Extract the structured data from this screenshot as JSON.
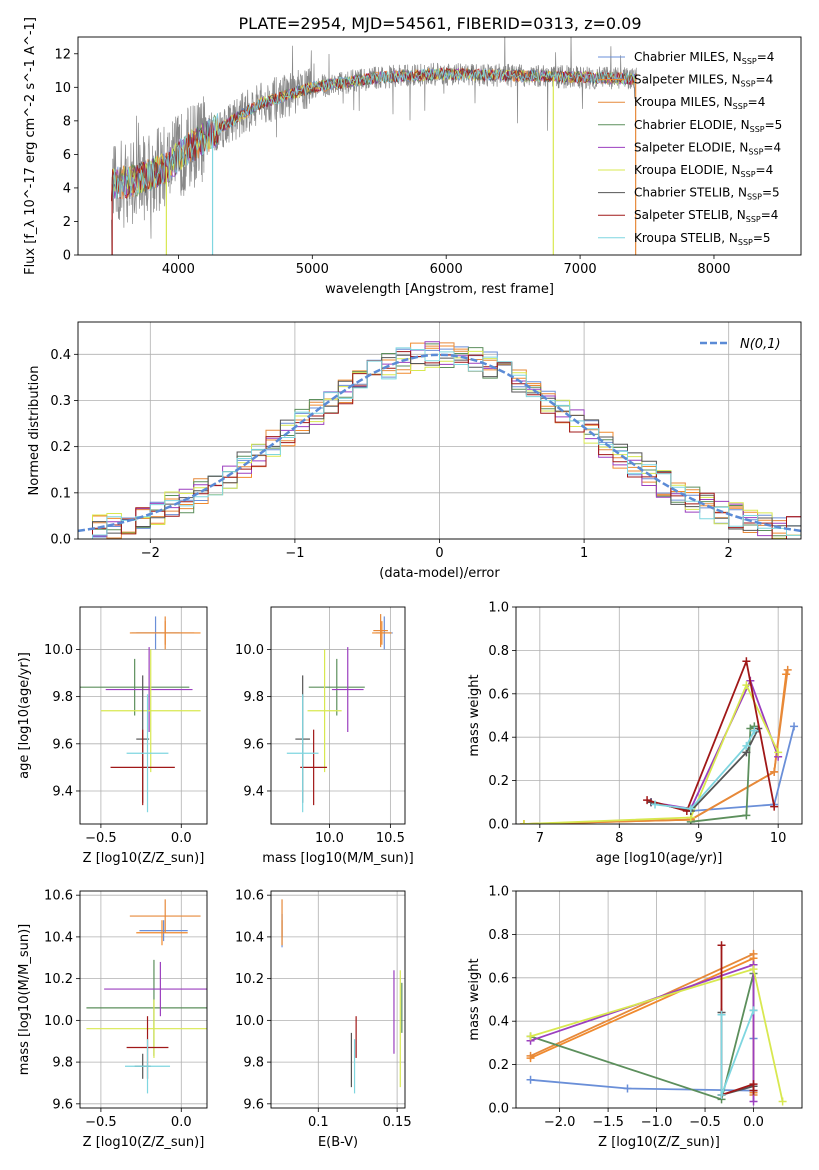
{
  "figure_title": "PLATE=2954, MJD=54561, FIBERID=0313, z=0.09",
  "model_colors": [
    "#6a8fd8",
    "#f08a2e",
    "#e6893a",
    "#5c8f5c",
    "#9b3fbf",
    "#d8e850",
    "#555555",
    "#a01818",
    "#7fd6e0"
  ],
  "legend_entries": [
    "Chabrier MILES, N_SSP=4",
    "Salpeter MILES, N_SSP=4",
    "Kroupa MILES, N_SSP=4",
    "Chabrier ELODIE, N_SSP=5",
    "Salpeter ELODIE, N_SSP=4",
    "Kroupa ELODIE, N_SSP=4",
    "Chabrier STELIB, N_SSP=5",
    "Salpeter STELIB, N_SSP=4",
    "Kroupa STELIB, N_SSP=5"
  ],
  "chart_data": [
    {
      "id": "spectrum",
      "type": "line",
      "xlabel": "wavelength [Angstrom, rest frame]",
      "ylabel": "Flux [f_λ 10^-17 erg cm^-2 s^-1 A^-1]",
      "xlim": [
        3250,
        8650
      ],
      "ylim": [
        0,
        13
      ],
      "xticks": [
        4000,
        5000,
        6000,
        7000,
        8000
      ],
      "yticks": [
        0,
        2,
        4,
        6,
        8,
        10,
        12
      ],
      "grid": false,
      "legend_position": "right",
      "continuum_nodes": {
        "x": [
          3500,
          3700,
          3900,
          4100,
          4300,
          4600,
          5000,
          5500,
          6000,
          6500,
          7000,
          7400
        ],
        "y": [
          4.2,
          4.5,
          5.2,
          6.5,
          7.5,
          9.0,
          10.0,
          10.6,
          10.8,
          10.7,
          10.6,
          10.5
        ]
      },
      "data_range": [
        3500,
        7420
      ]
    },
    {
      "id": "residual_histogram",
      "type": "bar",
      "xlabel": "(data-model)/error",
      "ylabel": "Normed distribution",
      "xlim": [
        -2.5,
        2.5
      ],
      "ylim": [
        0,
        0.47
      ],
      "xticks": [
        -2,
        -1,
        0,
        1,
        2
      ],
      "yticks": [
        0.0,
        0.1,
        0.2,
        0.3,
        0.4
      ],
      "grid": true,
      "legend_position": "top-right",
      "reference_curve": "N(0,1)",
      "bin_width": 0.1
    },
    {
      "id": "age_vs_Z",
      "type": "scatter",
      "xlabel": "Z [log10(Z/Z_sun)]",
      "ylabel": "age [log10(age/yr)]",
      "xlim": [
        -0.63,
        0.16
      ],
      "ylim": [
        9.26,
        10.18
      ],
      "xticks": [
        -0.5,
        0.0
      ],
      "yticks": [
        9.4,
        9.6,
        9.8,
        10.0
      ],
      "grid": true,
      "points": [
        {
          "x": -0.16,
          "xerr": 0.15,
          "y": 10.07,
          "yerr": 0.07
        },
        {
          "x": -0.1,
          "xerr": 0.22,
          "y": 10.07,
          "yerr": 0.05
        },
        {
          "x": -0.1,
          "xerr": 0.18,
          "y": 10.07,
          "yerr": 0.07
        },
        {
          "x": -0.29,
          "xerr": 0.34,
          "y": 9.84,
          "yerr": 0.12
        },
        {
          "x": -0.2,
          "xerr": 0.27,
          "y": 9.83,
          "yerr": 0.18
        },
        {
          "x": -0.19,
          "xerr": 0.31,
          "y": 9.74,
          "yerr": 0.26
        },
        {
          "x": -0.24,
          "xerr": 0.04,
          "y": 9.62,
          "yerr": 0.27
        },
        {
          "x": -0.24,
          "xerr": 0.2,
          "y": 9.5,
          "yerr": 0.16
        },
        {
          "x": -0.21,
          "xerr": 0.13,
          "y": 9.56,
          "yerr": 0.25
        }
      ]
    },
    {
      "id": "age_vs_mass",
      "type": "scatter",
      "xlabel": "mass [log10(M/M_sun)]",
      "ylabel": "",
      "xlim": [
        9.52,
        10.62
      ],
      "ylim": [
        9.26,
        10.18
      ],
      "xticks": [
        10.0,
        10.5
      ],
      "yticks": [
        9.4,
        9.6,
        9.8,
        10.0
      ],
      "grid": true,
      "points": [
        {
          "x": 10.45,
          "xerr": 0.07,
          "y": 10.07,
          "yerr": 0.07
        },
        {
          "x": 10.43,
          "xerr": 0.08,
          "y": 10.07,
          "yerr": 0.05
        },
        {
          "x": 10.42,
          "xerr": 0.06,
          "y": 10.08,
          "yerr": 0.07
        },
        {
          "x": 10.06,
          "xerr": 0.23,
          "y": 9.84,
          "yerr": 0.12
        },
        {
          "x": 10.15,
          "xerr": 0.13,
          "y": 9.83,
          "yerr": 0.18
        },
        {
          "x": 9.96,
          "xerr": 0.14,
          "y": 9.74,
          "yerr": 0.26
        },
        {
          "x": 9.78,
          "xerr": 0.06,
          "y": 9.62,
          "yerr": 0.27
        },
        {
          "x": 9.87,
          "xerr": 0.11,
          "y": 9.5,
          "yerr": 0.16
        },
        {
          "x": 9.78,
          "xerr": 0.13,
          "y": 9.56,
          "yerr": 0.25
        }
      ]
    },
    {
      "id": "mass_weight_vs_age",
      "type": "line",
      "xlabel": "age [log10(age/yr)]",
      "ylabel": "mass weight",
      "xlim": [
        6.7,
        10.3
      ],
      "ylim": [
        0,
        1.0
      ],
      "xticks": [
        7,
        8,
        9,
        10
      ],
      "yticks": [
        0.0,
        0.2,
        0.4,
        0.6,
        0.8,
        1.0
      ],
      "grid": true,
      "series": [
        {
          "x": [
            8.4,
            8.9,
            9.95,
            10.2
          ],
          "y": [
            0.1,
            0.06,
            0.09,
            0.45
          ]
        },
        {
          "x": [
            6.8,
            8.9,
            9.95,
            10.1
          ],
          "y": [
            0.0,
            0.02,
            0.24,
            0.69
          ]
        },
        {
          "x": [
            6.8,
            8.9,
            9.95,
            10.12
          ],
          "y": [
            0.0,
            0.02,
            0.24,
            0.71
          ]
        },
        {
          "x": [
            8.9,
            9.6,
            9.65,
            9.7
          ],
          "y": [
            0.01,
            0.04,
            0.44,
            0.45
          ]
        },
        {
          "x": [
            8.4,
            8.9,
            9.65,
            10.0
          ],
          "y": [
            0.1,
            0.07,
            0.66,
            0.31
          ]
        },
        {
          "x": [
            6.8,
            8.9,
            9.6,
            10.0
          ],
          "y": [
            0.0,
            0.03,
            0.64,
            0.33
          ]
        },
        {
          "x": [
            8.4,
            8.9,
            9.6,
            9.75
          ],
          "y": [
            0.1,
            0.06,
            0.33,
            0.44
          ]
        },
        {
          "x": [
            8.35,
            8.85,
            9.6,
            9.95
          ],
          "y": [
            0.11,
            0.06,
            0.75,
            0.08
          ]
        },
        {
          "x": [
            8.45,
            8.9,
            9.6,
            9.7
          ],
          "y": [
            0.09,
            0.07,
            0.36,
            0.43
          ]
        }
      ]
    },
    {
      "id": "mass_vs_Z",
      "type": "scatter",
      "xlabel": "Z [log10(Z/Z_sun)]",
      "ylabel": "mass [log10(M/M_sun)]",
      "xlim": [
        -0.63,
        0.16
      ],
      "ylim": [
        9.58,
        10.62
      ],
      "xticks": [
        -0.5,
        0.0
      ],
      "yticks": [
        9.6,
        9.8,
        10.0,
        10.2,
        10.4,
        10.6
      ],
      "grid": true,
      "points": [
        {
          "x": -0.11,
          "xerr": 0.15,
          "y": 10.43,
          "yerr": 0.05
        },
        {
          "x": -0.12,
          "xerr": 0.16,
          "y": 10.42,
          "yerr": 0.06
        },
        {
          "x": -0.1,
          "xerr": 0.22,
          "y": 10.5,
          "yerr": 0.08
        },
        {
          "x": -0.17,
          "xerr": 0.42,
          "y": 10.06,
          "yerr": 0.23
        },
        {
          "x": -0.13,
          "xerr": 0.35,
          "y": 10.15,
          "yerr": 0.13
        },
        {
          "x": -0.17,
          "xerr": 0.42,
          "y": 9.96,
          "yerr": 0.14
        },
        {
          "x": -0.24,
          "xerr": 0.05,
          "y": 9.78,
          "yerr": 0.06
        },
        {
          "x": -0.21,
          "xerr": 0.13,
          "y": 9.87,
          "yerr": 0.15
        },
        {
          "x": -0.21,
          "xerr": 0.14,
          "y": 9.78,
          "yerr": 0.13
        }
      ]
    },
    {
      "id": "mass_vs_EBV",
      "type": "scatter",
      "xlabel": "E(B-V)",
      "ylabel": "",
      "xlim": [
        0.07,
        0.155
      ],
      "ylim": [
        9.58,
        10.62
      ],
      "xticks": [
        0.1,
        0.15
      ],
      "yticks": [
        9.6,
        9.8,
        10.0,
        10.2,
        10.4,
        10.6
      ],
      "grid": true,
      "points": [
        {
          "x": 0.077,
          "y": 10.43,
          "yerr": 0.08
        },
        {
          "x": 0.077,
          "y": 10.42,
          "yerr": 0.06
        },
        {
          "x": 0.077,
          "y": 10.49,
          "yerr": 0.09
        },
        {
          "x": 0.153,
          "y": 10.06,
          "yerr": 0.12
        },
        {
          "x": 0.148,
          "y": 10.04,
          "yerr": 0.2
        },
        {
          "x": 0.152,
          "y": 9.96,
          "yerr": 0.28
        },
        {
          "x": 0.121,
          "y": 9.81,
          "yerr": 0.13
        },
        {
          "x": 0.124,
          "y": 9.92,
          "yerr": 0.1
        },
        {
          "x": 0.123,
          "y": 9.78,
          "yerr": 0.13
        }
      ]
    },
    {
      "id": "mass_weight_vs_Z",
      "type": "line",
      "xlabel": "Z [log10(Z/Z_sun)]",
      "ylabel": "mass weight",
      "xlim": [
        -2.45,
        0.5
      ],
      "ylim": [
        0,
        1.0
      ],
      "xticks": [
        -2.0,
        -1.5,
        -1.0,
        -0.5,
        0.0
      ],
      "yticks": [
        0.0,
        0.2,
        0.4,
        0.6,
        0.8,
        1.0
      ],
      "grid": true,
      "series": [
        {
          "x": [
            -2.3,
            -1.3,
            0.0,
            0.0
          ],
          "y": [
            0.13,
            0.09,
            0.08,
            0.32
          ]
        },
        {
          "x": [
            -2.3,
            0.0,
            0.0
          ],
          "y": [
            0.23,
            0.69,
            0.07
          ]
        },
        {
          "x": [
            -2.3,
            0.0,
            0.0
          ],
          "y": [
            0.24,
            0.71,
            0.06
          ]
        },
        {
          "x": [
            -2.3,
            -0.33,
            0.0,
            0.0
          ],
          "y": [
            0.33,
            0.04,
            0.62,
            0.45
          ]
        },
        {
          "x": [
            -2.3,
            0.0,
            0.0
          ],
          "y": [
            0.31,
            0.66,
            0.03
          ]
        },
        {
          "x": [
            -2.3,
            0.0,
            0.3
          ],
          "y": [
            0.33,
            0.64,
            0.03
          ]
        },
        {
          "x": [
            -0.33,
            -0.33,
            0.0,
            0.0
          ],
          "y": [
            0.44,
            0.06,
            0.1,
            0.08
          ]
        },
        {
          "x": [
            -0.33,
            -0.33,
            0.0,
            0.0
          ],
          "y": [
            0.75,
            0.06,
            0.11,
            0.08
          ]
        },
        {
          "x": [
            -0.33,
            -0.33,
            0.0
          ],
          "y": [
            0.43,
            0.06,
            0.45
          ]
        }
      ]
    }
  ]
}
